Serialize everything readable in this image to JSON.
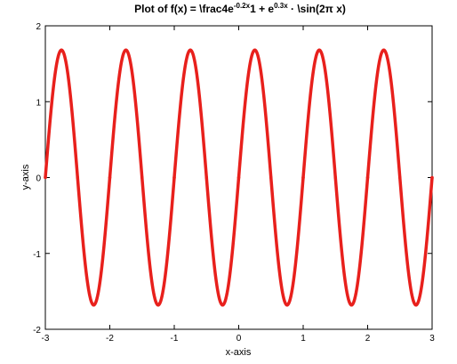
{
  "chart_data": {
    "type": "line",
    "title": {
      "prefix": "Plot of f(x) = \\frac4e",
      "sup1": "-0.2x",
      "middle": "1 + e",
      "sup2": "0.3x",
      "suffix": " · \\sin(2π x)"
    },
    "xlabel": "x-axis",
    "ylabel": "y-axis",
    "xlim": [
      -3,
      3
    ],
    "ylim": [
      -2,
      2
    ],
    "x_ticks": [
      "-3",
      "-2",
      "-1",
      "0",
      "1",
      "2",
      "3"
    ],
    "y_ticks": [
      "-2",
      "-1",
      "0",
      "1",
      "2"
    ],
    "grid": false,
    "series": [
      {
        "color": "#e8201c",
        "amplitude": 1.68,
        "frequency": 1,
        "x_start": -3,
        "x_end": 3,
        "samples": [
          {
            "x": -3.0,
            "y": 0.0
          },
          {
            "x": -2.75,
            "y": 1.68
          },
          {
            "x": -2.5,
            "y": 0.0
          },
          {
            "x": -2.25,
            "y": -1.68
          },
          {
            "x": -2.0,
            "y": 0.0
          },
          {
            "x": -1.75,
            "y": 1.68
          },
          {
            "x": -1.5,
            "y": 0.0
          },
          {
            "x": -1.25,
            "y": -1.68
          },
          {
            "x": -1.0,
            "y": 0.0
          },
          {
            "x": -0.75,
            "y": 1.68
          },
          {
            "x": -0.5,
            "y": 0.0
          },
          {
            "x": -0.25,
            "y": -1.68
          },
          {
            "x": 0.0,
            "y": 0.0
          },
          {
            "x": 0.25,
            "y": 1.68
          },
          {
            "x": 0.5,
            "y": 0.0
          },
          {
            "x": 0.75,
            "y": -1.68
          },
          {
            "x": 1.0,
            "y": 0.0
          },
          {
            "x": 1.25,
            "y": 1.68
          },
          {
            "x": 1.5,
            "y": 0.0
          },
          {
            "x": 1.75,
            "y": -1.68
          },
          {
            "x": 2.0,
            "y": 0.0
          },
          {
            "x": 2.25,
            "y": 1.68
          },
          {
            "x": 2.5,
            "y": 0.0
          },
          {
            "x": 2.75,
            "y": -1.68
          },
          {
            "x": 3.0,
            "y": 0.0
          }
        ]
      }
    ]
  }
}
